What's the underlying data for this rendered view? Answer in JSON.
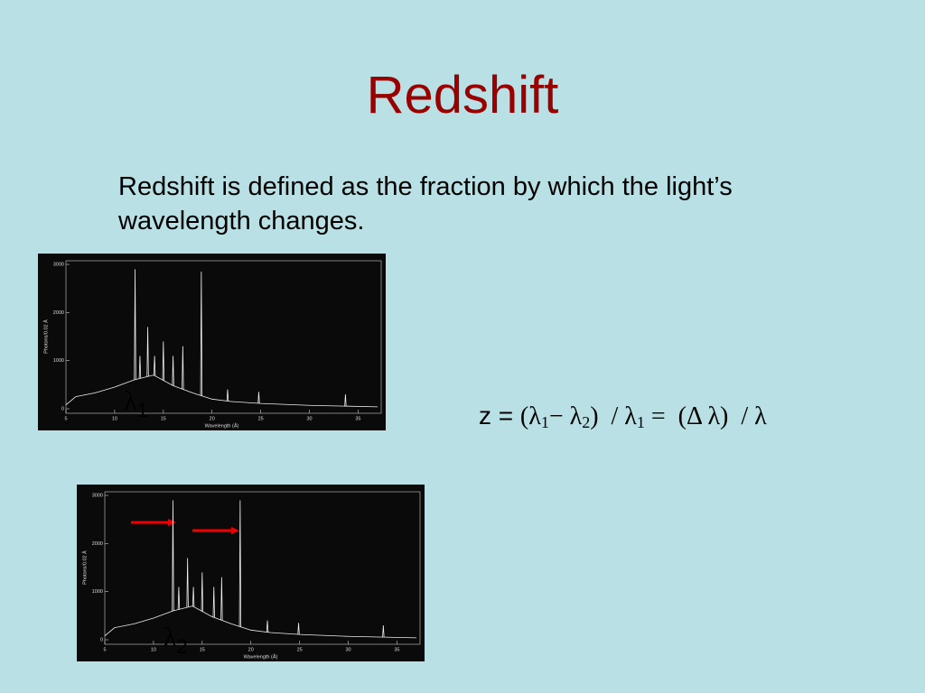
{
  "title": "Redshift",
  "body": "Redshift is defined as the fraction by which the light’s wavelength changes.",
  "formula": {
    "lead": "z = ",
    "parts": [
      "(λ",
      "1",
      "− λ",
      "2",
      ")  / λ",
      "1",
      " =  (Δ λ)  / λ"
    ]
  },
  "spectra": [
    {
      "type": "line",
      "xlabel": "Wavelength (Å)",
      "ylabel": "Photons/0.02 Å",
      "xlim": [
        5,
        37
      ],
      "ylim": [
        0,
        3000
      ],
      "xticks": [
        5,
        10,
        15,
        20,
        25,
        30,
        35
      ],
      "yticks": [
        0,
        1000,
        2000,
        3000
      ],
      "continuum": {
        "x": [
          5,
          6,
          8,
          10,
          12,
          14,
          16,
          18,
          20,
          22,
          25,
          30,
          37
        ],
        "values": [
          80,
          250,
          330,
          450,
          600,
          700,
          480,
          330,
          200,
          150,
          110,
          70,
          40
        ]
      },
      "lines": {
        "x": [
          12.1,
          12.6,
          13.4,
          14.1,
          15.0,
          16.0,
          17.0,
          18.9,
          21.6,
          24.8,
          33.7
        ],
        "values": [
          2900,
          1100,
          1700,
          1100,
          1400,
          1100,
          1300,
          2850,
          400,
          350,
          300
        ]
      },
      "marker": {
        "symbol": "λ",
        "sub": "1"
      }
    },
    {
      "type": "line",
      "xlabel": "Wavelength (Å)",
      "ylabel": "Photons/0.02 Å",
      "xlim": [
        5,
        37
      ],
      "ylim": [
        0,
        3000
      ],
      "xticks": [
        5,
        10,
        15,
        20,
        25,
        30,
        35
      ],
      "yticks": [
        0,
        1000,
        2000,
        3000
      ],
      "continuum": {
        "x": [
          5,
          6,
          8,
          10,
          12,
          14,
          16,
          18,
          20,
          22,
          25,
          30,
          37
        ],
        "values": [
          80,
          250,
          330,
          450,
          600,
          700,
          480,
          330,
          200,
          150,
          110,
          70,
          40
        ]
      },
      "lines": {
        "x": [
          12.0,
          12.6,
          13.5,
          14.1,
          15.0,
          16.2,
          17.0,
          18.9,
          21.7,
          24.9,
          33.6
        ],
        "values": [
          2900,
          1100,
          1700,
          1100,
          1400,
          1100,
          1300,
          2900,
          400,
          350,
          300
        ]
      },
      "marker": {
        "symbol": "λ",
        "sub": "2"
      }
    }
  ]
}
